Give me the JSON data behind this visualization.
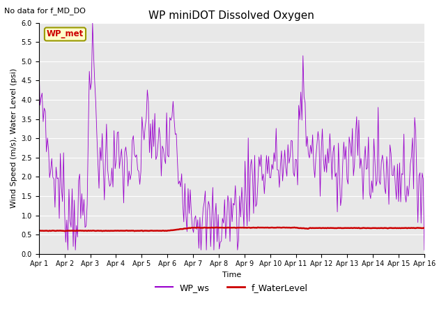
{
  "title": "WP miniDOT Dissolved Oxygen",
  "top_left_text": "No data for f_MD_DO",
  "ylabel": "Wind Speed (m/s), Water Level (psi)",
  "xlabel": "Time",
  "ylim": [
    0.0,
    6.0
  ],
  "yticks": [
    0.0,
    0.5,
    1.0,
    1.5,
    2.0,
    2.5,
    3.0,
    3.5,
    4.0,
    4.5,
    5.0,
    5.5,
    6.0
  ],
  "bg_color": "#e8e8e8",
  "wp_ws_color": "#9900cc",
  "f_wl_color": "#cc0000",
  "legend_label_ws": "WP_ws",
  "legend_label_wl": "f_WaterLevel",
  "box_label": "WP_met",
  "box_facecolor": "#ffffcc",
  "box_edgecolor": "#999900",
  "n_days": 15,
  "pts_per_day": 24,
  "title_fontsize": 11,
  "axis_label_fontsize": 8,
  "tick_fontsize": 7,
  "legend_fontsize": 9
}
